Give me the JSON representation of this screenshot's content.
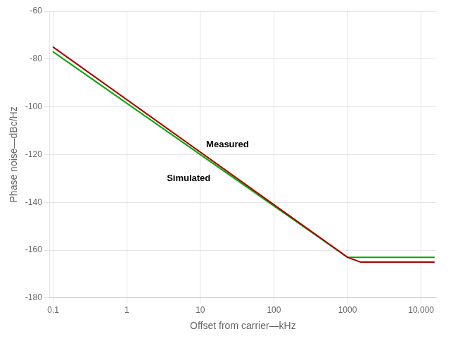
{
  "chart_data": {
    "type": "line",
    "log": "x",
    "grid": true,
    "xlabel": "Offset from carrier—kHz",
    "ylabel": "Phase noise—dBc/Hz",
    "xlim": [
      0.09,
      16000
    ],
    "ylim": [
      -180,
      -60
    ],
    "xticks": [
      0.1,
      1,
      10,
      100,
      1000,
      {
        "value": 10000,
        "label": "10,000"
      }
    ],
    "yticks": [
      -180,
      -160,
      -140,
      -120,
      -100,
      -80,
      -60
    ],
    "series": [
      {
        "color": "#00aa00",
        "x": [
          0.1,
          1000,
          15000
        ],
        "values": [
          -77,
          -163,
          -163
        ]
      },
      {
        "color": "#aa0000",
        "x": [
          0.1,
          1000,
          1500,
          15000
        ],
        "values": [
          -75,
          -163,
          -165,
          -165
        ]
      }
    ],
    "annotations": [
      {
        "text": "Measured",
        "x": 12,
        "y": -117
      },
      {
        "text": "Simulated",
        "x": 3.5,
        "y": -131
      }
    ]
  }
}
